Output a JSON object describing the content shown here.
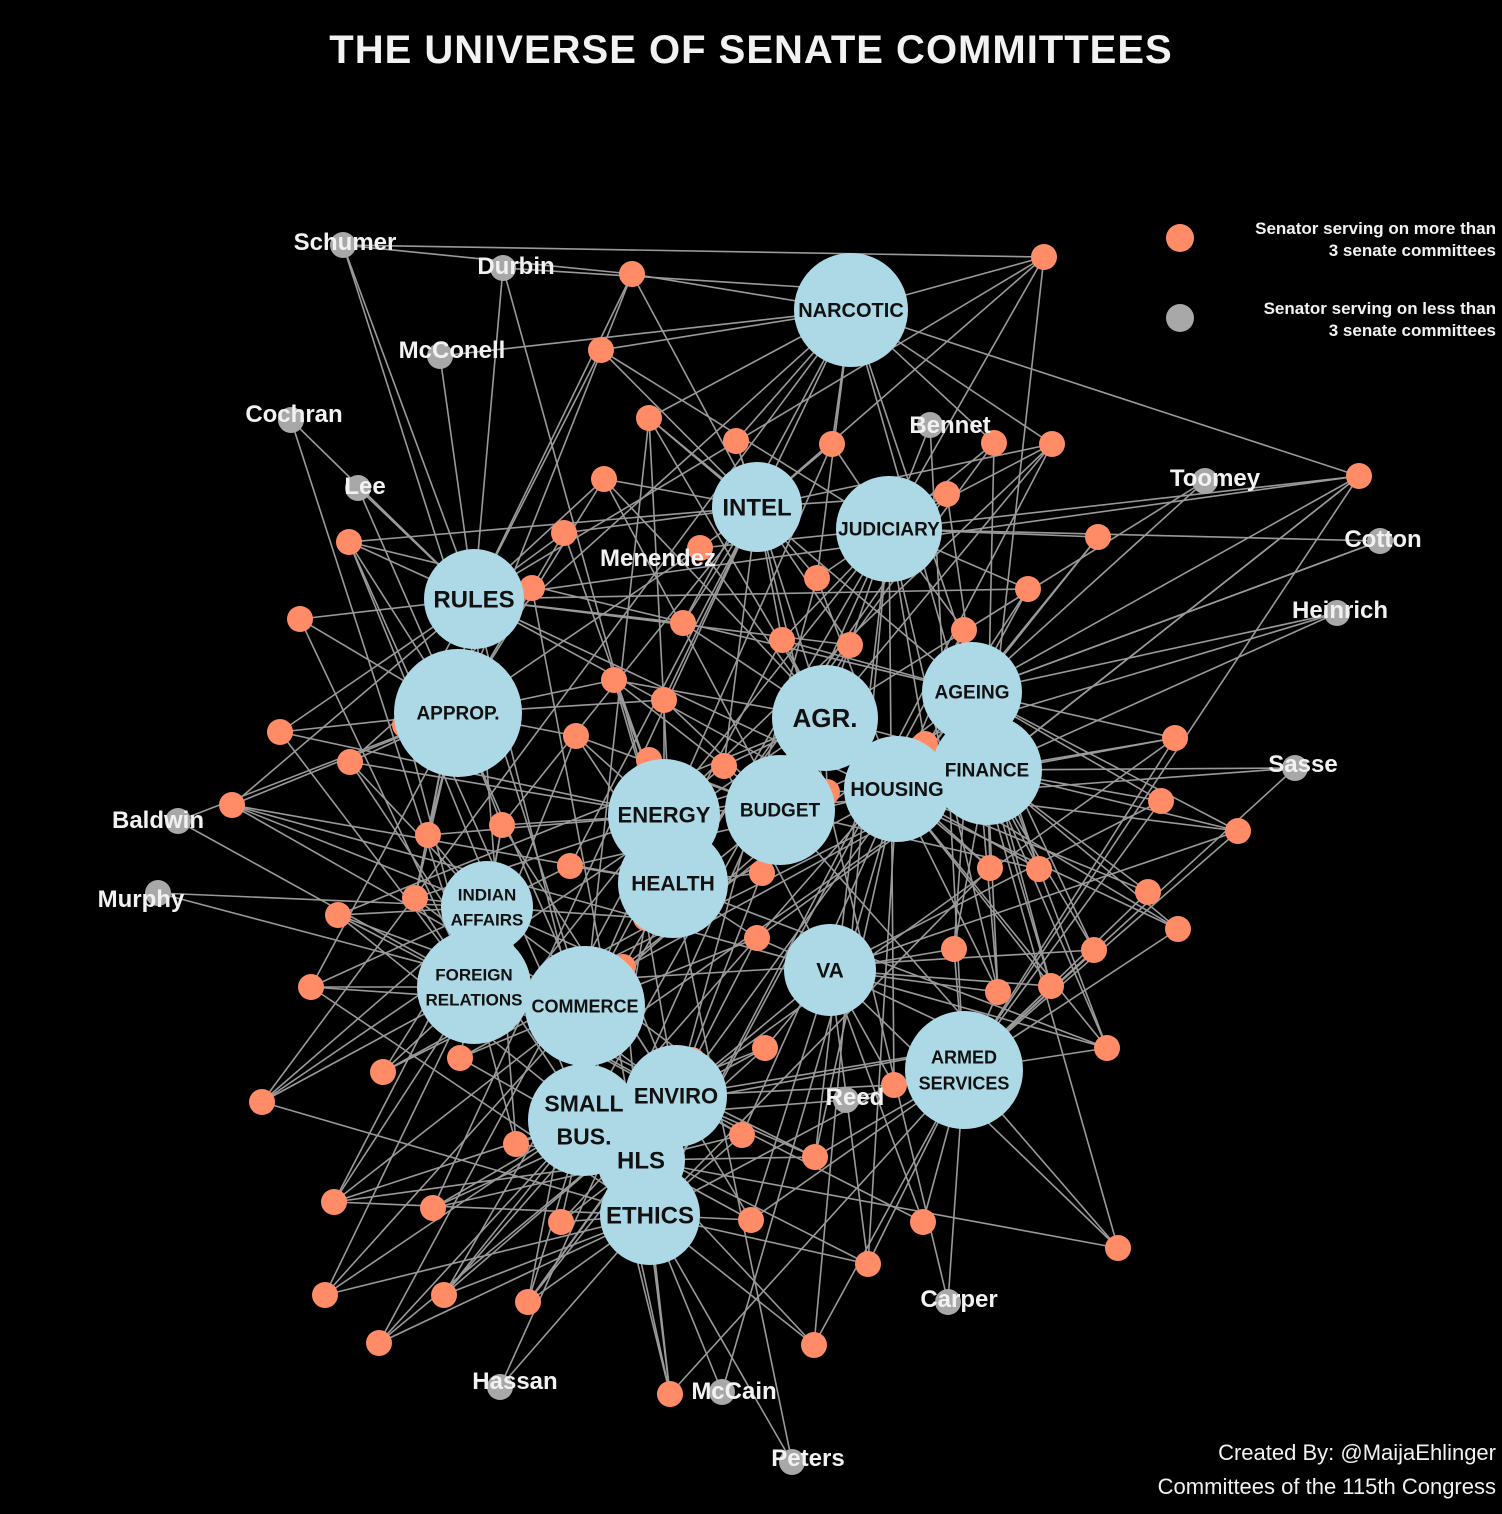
{
  "title": "THE UNIVERSE OF SENATE COMMITTEES",
  "legend": {
    "more": {
      "line1": "Senator serving on more than",
      "line2": "3 senate committees",
      "color": "#ff8c66"
    },
    "less": {
      "line1": "Senator serving on less than",
      "line2": "3 senate committees",
      "color": "#a8a8a8"
    }
  },
  "credit": {
    "line1": "Created By: @MaijaEhlinger",
    "line2": "Committees of the 115th Congress"
  },
  "colors": {
    "background": "#000000",
    "committee": "#add8e6",
    "edge": "#9a9a9a",
    "text": "#f2f2f2",
    "committee_text": "#111111"
  },
  "committees": [
    {
      "id": "narcotic",
      "label": [
        "NARCOTIC"
      ]
    },
    {
      "id": "intel",
      "label": [
        "INTEL"
      ]
    },
    {
      "id": "judiciary",
      "label": [
        "JUDICIARY"
      ]
    },
    {
      "id": "rules",
      "label": [
        "RULES"
      ]
    },
    {
      "id": "approp",
      "label": [
        "APPROP."
      ]
    },
    {
      "id": "agr",
      "label": [
        "AGR."
      ]
    },
    {
      "id": "ageing",
      "label": [
        "AGEING"
      ]
    },
    {
      "id": "finance",
      "label": [
        "FINANCE"
      ]
    },
    {
      "id": "housing",
      "label": [
        "HOUSING"
      ]
    },
    {
      "id": "budget",
      "label": [
        "BUDGET"
      ]
    },
    {
      "id": "energy",
      "label": [
        "ENERGY"
      ]
    },
    {
      "id": "health",
      "label": [
        "HEALTH"
      ]
    },
    {
      "id": "indian",
      "label": [
        "INDIAN",
        "AFFAIRS"
      ]
    },
    {
      "id": "foreign",
      "label": [
        "FOREIGN",
        "RELATIONS"
      ]
    },
    {
      "id": "commerce",
      "label": [
        "COMMERCE"
      ]
    },
    {
      "id": "va",
      "label": [
        "VA"
      ]
    },
    {
      "id": "armed",
      "label": [
        "ARMED",
        "SERVICES"
      ]
    },
    {
      "id": "enviro",
      "label": [
        "ENVIRO"
      ]
    },
    {
      "id": "smallbus",
      "label": [
        "SMALL",
        "BUS."
      ]
    },
    {
      "id": "hls",
      "label": [
        "HLS"
      ]
    },
    {
      "id": "ethics",
      "label": [
        "ETHICS"
      ]
    }
  ],
  "labeled_senators": [
    {
      "id": "schumer",
      "name": "Schumer",
      "type": "less"
    },
    {
      "id": "durbin",
      "name": "Durbin",
      "type": "less"
    },
    {
      "id": "mcconell",
      "name": "McConell",
      "type": "less"
    },
    {
      "id": "cochran",
      "name": "Cochran",
      "type": "less"
    },
    {
      "id": "lee",
      "name": "Lee",
      "type": "less"
    },
    {
      "id": "bennet",
      "name": "Bennet",
      "type": "less"
    },
    {
      "id": "toomey",
      "name": "Toomey",
      "type": "less"
    },
    {
      "id": "cotton",
      "name": "Cotton",
      "type": "less"
    },
    {
      "id": "heinrich",
      "name": "Heinrich",
      "type": "less"
    },
    {
      "id": "sasse",
      "name": "Sasse",
      "type": "less"
    },
    {
      "id": "menendez",
      "name": "Menendez",
      "type": "more"
    },
    {
      "id": "baldwin",
      "name": "Baldwin",
      "type": "less"
    },
    {
      "id": "murphy",
      "name": "Murphy",
      "type": "less"
    },
    {
      "id": "reed",
      "name": "Reed",
      "type": "less"
    },
    {
      "id": "carper",
      "name": "Carper",
      "type": "less"
    },
    {
      "id": "hassan",
      "name": "Hassan",
      "type": "less"
    },
    {
      "id": "mccain",
      "name": "McCain",
      "type": "less"
    },
    {
      "id": "peters",
      "name": "Peters",
      "type": "less"
    }
  ]
}
